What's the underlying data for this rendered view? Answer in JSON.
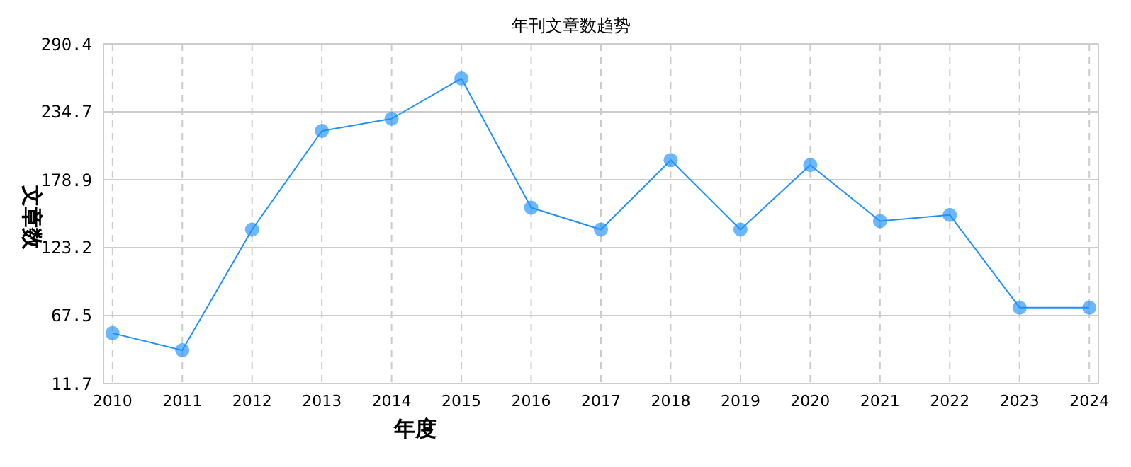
{
  "chart_data": {
    "type": "line",
    "title": "年刊文章数趋势",
    "xlabel": "年度",
    "ylabel": "文章数",
    "categories": [
      "2010",
      "2011",
      "2012",
      "2013",
      "2014",
      "2015",
      "2016",
      "2017",
      "2018",
      "2019",
      "2020",
      "2021",
      "2022",
      "2023",
      "2024"
    ],
    "series": [
      {
        "color": "#1e90ff",
        "values": [
          53,
          39,
          138,
          219,
          229,
          262,
          156,
          138,
          195,
          138,
          191,
          145,
          150,
          74,
          74
        ]
      }
    ],
    "ylim": [
      11.7,
      290.4
    ],
    "yticks": [
      11.7,
      67.5,
      123.2,
      178.9,
      234.7,
      290.4
    ],
    "grid": true,
    "marker": "circle",
    "line_style": "solid",
    "legend": false
  }
}
